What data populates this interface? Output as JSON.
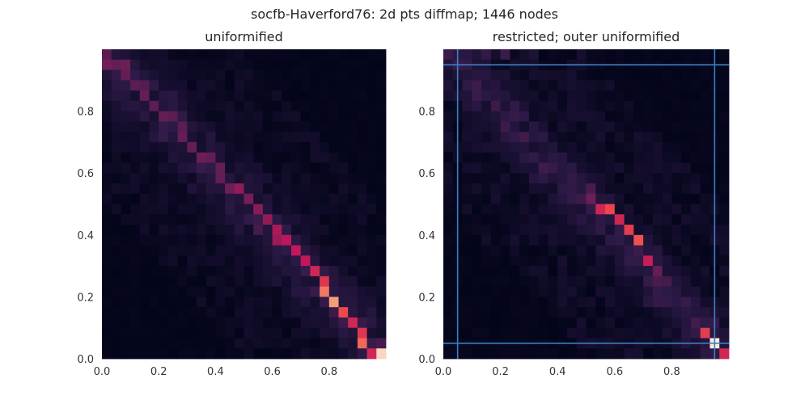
{
  "figure": {
    "suptitle": "socfb-Haverford76: 2d pts diffmap; 1446 nodes"
  },
  "colors": {
    "cmap": [
      "#03051a",
      "#2d1a47",
      "#701f57",
      "#c2185a",
      "#ee4b4a",
      "#f6a47c",
      "#faebdd"
    ],
    "line": "#3a7fc2"
  },
  "chart_data": [
    {
      "type": "heatmap",
      "title": "uniformified",
      "xlabel": "",
      "ylabel": "",
      "xlim": [
        0,
        1
      ],
      "ylim": [
        0,
        1
      ],
      "xticks": [
        "0.0",
        "0.2",
        "0.4",
        "0.6",
        "0.8"
      ],
      "yticks": [
        "0.0",
        "0.2",
        "0.4",
        "0.6",
        "0.8"
      ],
      "bins": 30,
      "grid": false,
      "diagonal": [
        [
          0.01,
          0.985,
          0.28
        ],
        [
          0.03,
          0.96,
          0.33
        ],
        [
          0.05,
          0.95,
          0.3
        ],
        [
          0.07,
          0.935,
          0.32
        ],
        [
          0.09,
          0.91,
          0.3
        ],
        [
          0.12,
          0.89,
          0.28
        ],
        [
          0.14,
          0.87,
          0.26
        ],
        [
          0.16,
          0.845,
          0.3
        ],
        [
          0.19,
          0.82,
          0.28
        ],
        [
          0.22,
          0.795,
          0.3
        ],
        [
          0.24,
          0.77,
          0.28
        ],
        [
          0.27,
          0.745,
          0.28
        ],
        [
          0.29,
          0.72,
          0.3
        ],
        [
          0.32,
          0.695,
          0.3
        ],
        [
          0.35,
          0.665,
          0.32
        ],
        [
          0.37,
          0.645,
          0.3
        ],
        [
          0.4,
          0.615,
          0.3
        ],
        [
          0.43,
          0.59,
          0.3
        ],
        [
          0.46,
          0.56,
          0.32
        ],
        [
          0.48,
          0.535,
          0.4
        ],
        [
          0.51,
          0.51,
          0.35
        ],
        [
          0.54,
          0.48,
          0.38
        ],
        [
          0.57,
          0.455,
          0.4
        ],
        [
          0.6,
          0.425,
          0.45
        ],
        [
          0.63,
          0.4,
          0.42
        ],
        [
          0.66,
          0.37,
          0.48
        ],
        [
          0.69,
          0.345,
          0.5
        ],
        [
          0.72,
          0.32,
          0.5
        ],
        [
          0.75,
          0.29,
          0.55
        ],
        [
          0.78,
          0.255,
          0.6
        ],
        [
          0.79,
          0.23,
          0.75
        ],
        [
          0.82,
          0.185,
          0.82
        ],
        [
          0.84,
          0.15,
          0.66
        ],
        [
          0.87,
          0.12,
          0.55
        ],
        [
          0.9,
          0.09,
          0.6
        ],
        [
          0.93,
          0.06,
          0.72
        ],
        [
          0.96,
          0.03,
          0.55
        ],
        [
          0.98,
          0.005,
          0.95
        ]
      ],
      "band_width": 0.06,
      "background_level": 0.04
    },
    {
      "type": "heatmap",
      "title": "restricted; outer uniformified",
      "xlabel": "",
      "ylabel": "",
      "xlim": [
        0,
        1
      ],
      "ylim": [
        0,
        1
      ],
      "xticks": [
        "0.0",
        "0.2",
        "0.4",
        "0.6",
        "0.8"
      ],
      "yticks": [
        "0.0",
        "0.2",
        "0.4",
        "0.6",
        "0.8"
      ],
      "bins": 30,
      "grid": false,
      "diagonal": [
        [
          0.3,
          0.73,
          0.08
        ],
        [
          0.34,
          0.7,
          0.1
        ],
        [
          0.38,
          0.67,
          0.12
        ],
        [
          0.42,
          0.63,
          0.14
        ],
        [
          0.46,
          0.58,
          0.18
        ],
        [
          0.5,
          0.55,
          0.24
        ],
        [
          0.53,
          0.51,
          0.32
        ],
        [
          0.56,
          0.48,
          0.55
        ],
        [
          0.58,
          0.48,
          0.65
        ],
        [
          0.62,
          0.45,
          0.55
        ],
        [
          0.64,
          0.41,
          0.62
        ],
        [
          0.67,
          0.39,
          0.4
        ],
        [
          0.68,
          0.38,
          0.68
        ],
        [
          0.72,
          0.33,
          0.52
        ],
        [
          0.74,
          0.3,
          0.3
        ],
        [
          0.78,
          0.25,
          0.22
        ],
        [
          0.82,
          0.19,
          0.16
        ],
        [
          0.86,
          0.15,
          0.15
        ],
        [
          0.88,
          0.12,
          0.22
        ],
        [
          0.91,
          0.09,
          0.3
        ],
        [
          0.93,
          0.08,
          0.62
        ],
        [
          0.96,
          0.05,
          0.85
        ],
        [
          0.95,
          0.05,
          1.0
        ],
        [
          0.98,
          0.015,
          0.55
        ]
      ],
      "band_width": 0.05,
      "background_level": 0.05,
      "top_strip": [
        [
          0.15,
          0.985,
          0.18
        ],
        [
          0.22,
          0.985,
          0.2
        ],
        [
          0.3,
          0.985,
          0.1
        ],
        [
          0.05,
          0.97,
          0.08
        ]
      ],
      "lines": {
        "vertical": [
          0.05,
          0.95
        ],
        "horizontal": [
          0.05,
          0.95
        ]
      }
    }
  ]
}
